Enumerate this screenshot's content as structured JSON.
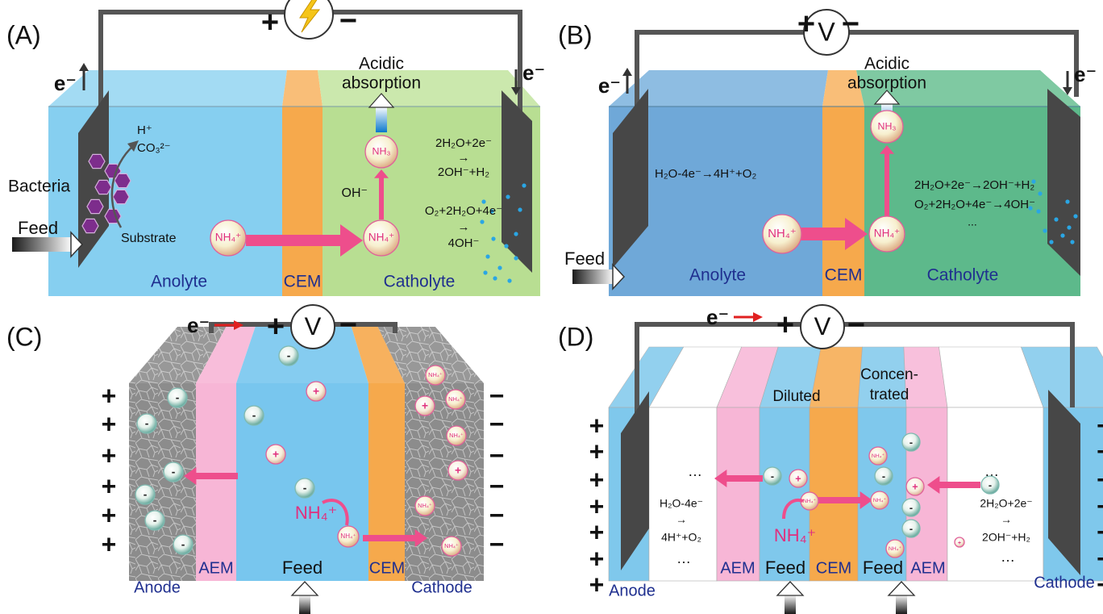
{
  "panel_a": {
    "label": "(A)",
    "plus": "+",
    "minus": "−",
    "electrons": [
      "e⁻",
      "e⁻"
    ],
    "absorption": [
      "Acidic",
      "absorption"
    ],
    "bacteria": "Bacteria",
    "products": [
      "H⁺",
      "CO₃²⁻"
    ],
    "substrate": "Substrate",
    "feed": "Feed",
    "ammonium": [
      "NH₄⁺",
      "NH₄⁺"
    ],
    "ammonia": "NH₃",
    "hydroxide": "OH⁻",
    "reactions": [
      "2H₂O+2e⁻",
      "→",
      "2OH⁻+H₂",
      "O₂+2H₂O+4e⁻",
      "→",
      "4OH⁻"
    ],
    "compartments": [
      "Anolyte",
      "CEM",
      "Catholyte"
    ]
  },
  "panel_b": {
    "label": "(B)",
    "plus": "+",
    "meter": "V",
    "minus": "−",
    "electrons": [
      "e⁻",
      "e⁻"
    ],
    "absorption": [
      "Acidic",
      "absorption"
    ],
    "anode_reaction": "H₂O-4e⁻→4H⁺+O₂",
    "cathode_reactions": [
      "2H₂O+2e⁻→2OH⁻+H₂",
      "O₂+2H₂O+4e⁻→4OH⁻",
      "..."
    ],
    "ammonium": [
      "NH₄⁺",
      "NH₄⁺"
    ],
    "ammonia": "NH₃",
    "feed": "Feed",
    "compartments": [
      "Anolyte",
      "CEM",
      "Catholyte"
    ]
  },
  "panel_c": {
    "label": "(C)",
    "electron": "e⁻",
    "plus": "+",
    "meter": "V",
    "minus": "−",
    "anode_charges": [
      "+",
      "+",
      "+",
      "+",
      "+",
      "+"
    ],
    "cathode_charges": [
      "−",
      "−",
      "−",
      "−",
      "−",
      "−"
    ],
    "ammonium": "NH₄⁺",
    "membranes": [
      "AEM",
      "CEM"
    ],
    "feed": "Feed",
    "electrodes": [
      "Anode",
      "Cathode"
    ],
    "anode_particles": [
      "-",
      "-",
      "-",
      "-",
      "-",
      "-"
    ],
    "feed_particles": [
      "-",
      "+",
      "-",
      "+",
      "-",
      "NH₄⁺"
    ],
    "cathode_particles": [
      "NH₄⁺",
      "+",
      "NH₄⁺",
      "NH₄⁺",
      "+",
      "NH₄⁺",
      "NH₄⁺"
    ]
  },
  "panel_d": {
    "label": "(D)",
    "electron": "e⁻",
    "plus": "+",
    "meter": "V",
    "minus": "−",
    "chambers": [
      "Diluted",
      "Concen-",
      "trated"
    ],
    "anode_charges": [
      "+",
      "+",
      "+",
      "+",
      "+",
      "+",
      "+"
    ],
    "cathode_charges": [
      "−",
      "−",
      "−",
      "−",
      "−",
      "−",
      "−"
    ],
    "anode_reaction": [
      "H₂O-4e⁻",
      "→",
      "4H⁺+O₂"
    ],
    "cathode_reaction": [
      "2H₂O+2e⁻",
      "→",
      "2OH⁻+H₂"
    ],
    "ellipses": [
      "…",
      "…",
      "…",
      "…"
    ],
    "membranes": [
      "AEM",
      "CEM",
      "AEM"
    ],
    "feeds": [
      "Feed",
      "Feed"
    ],
    "electrodes": [
      "Anode",
      "Cathode"
    ],
    "ammonium": "NH₄⁺",
    "diluted_particles": [
      "-",
      "+",
      "NH₄⁺"
    ],
    "concentrated_particles": [
      "NH₄⁺",
      "-",
      "-",
      "+",
      "-",
      "NH₄⁺",
      "-",
      "NH₄⁺"
    ],
    "cathode_particles": [
      "-",
      "+"
    ]
  }
}
